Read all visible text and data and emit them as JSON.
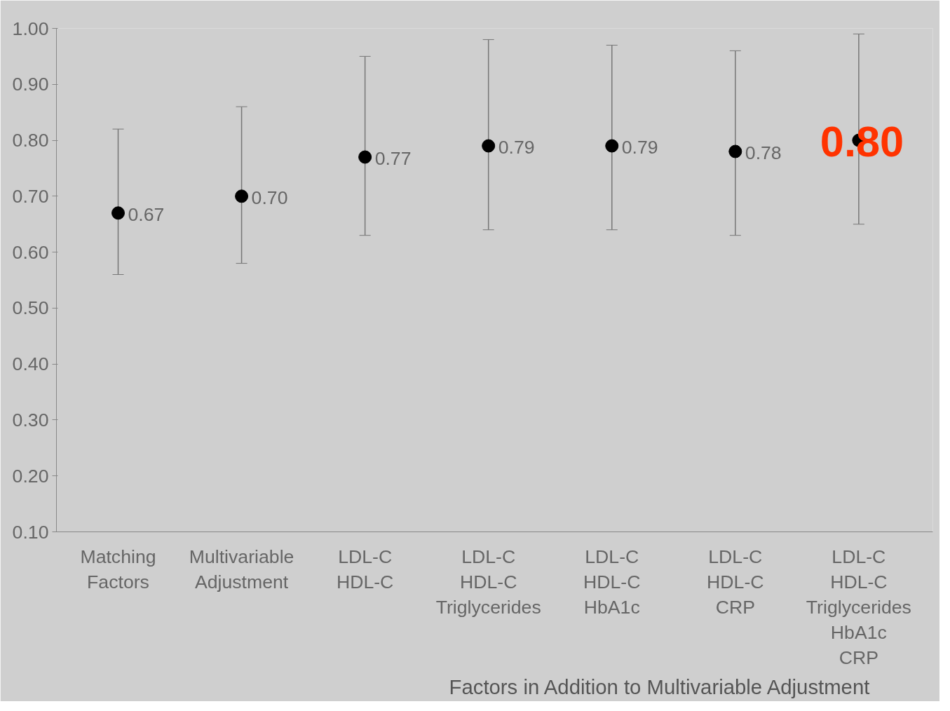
{
  "chart_data": {
    "type": "scatter",
    "categories": [
      "Matching\nFactors",
      "Multivariable\nAdjustment",
      "LDL-C\nHDL-C",
      "LDL-C\nHDL-C\nTriglycerides",
      "LDL-C\nHDL-C\nHbA1c",
      "LDL-C\nHDL-C\nCRP",
      "LDL-C\nHDL-C\nTriglycerides\nHbA1c\nCRP"
    ],
    "values": [
      0.67,
      0.7,
      0.77,
      0.79,
      0.79,
      0.78,
      0.8
    ],
    "errors": [
      [
        0.56,
        0.82
      ],
      [
        0.58,
        0.86
      ],
      [
        0.63,
        0.95
      ],
      [
        0.64,
        0.98
      ],
      [
        0.64,
        0.97
      ],
      [
        0.63,
        0.96
      ],
      [
        0.65,
        0.99
      ]
    ],
    "value_labels": [
      "0.67",
      "0.70",
      "0.77",
      "0.79",
      "0.79",
      "0.78",
      "0.80"
    ],
    "color": "#000000",
    "marker": "circle",
    "ylim": [
      0.1,
      1.0
    ],
    "yticks": [
      {
        "value": 0.1,
        "label": "0.10"
      },
      {
        "value": 0.2,
        "label": "0.20"
      },
      {
        "value": 0.3,
        "label": "0.30"
      },
      {
        "value": 0.4,
        "label": "0.40"
      },
      {
        "value": 0.5,
        "label": "0.50"
      },
      {
        "value": 0.6,
        "label": "0.60"
      },
      {
        "value": 0.7,
        "label": "0.70"
      },
      {
        "value": 0.8,
        "label": "0.80"
      },
      {
        "value": 0.9,
        "label": "0.90"
      },
      {
        "value": 1.0,
        "label": "1.00"
      }
    ],
    "grid": false,
    "annotations": [
      "Factors in Addition to Multivariable Adjustment"
    ]
  }
}
